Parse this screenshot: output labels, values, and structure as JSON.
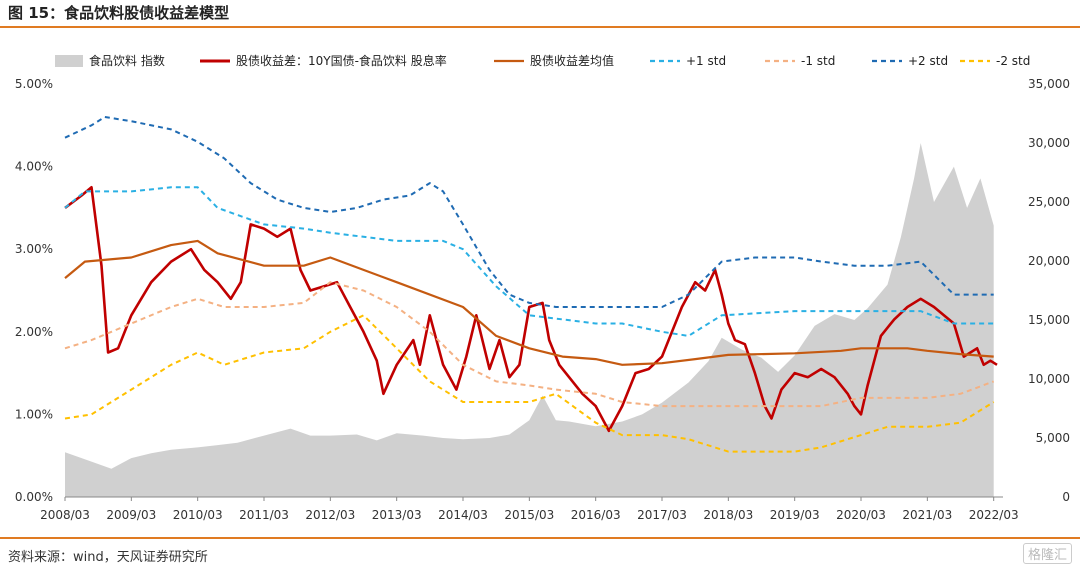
{
  "figure": {
    "title": "图 15：食品饮料股债收益差模型",
    "source": "资料来源：wind，天风证券研究所",
    "watermark": "格隆汇"
  },
  "colors": {
    "index_area": "#d0d0d0",
    "spread": "#c00000",
    "mean": "#c55a11",
    "plus1": "#2ab0e4",
    "minus1": "#f4b183",
    "plus2": "#1f6bb3",
    "minus2": "#ffc000",
    "rule": "#e07b22"
  },
  "chart_data": {
    "type": "line",
    "title": "",
    "x_tick_labels": [
      "2008/03",
      "2009/03",
      "2010/03",
      "2011/03",
      "2012/03",
      "2013/03",
      "2014/03",
      "2015/03",
      "2016/03",
      "2017/03",
      "2018/03",
      "2019/03",
      "2020/03",
      "2021/03",
      "2022/03"
    ],
    "y_left": {
      "min": 0,
      "max": 5,
      "unit": "%",
      "tick_labels": [
        "0.00%",
        "1.00%",
        "2.00%",
        "3.00%",
        "4.00%",
        "5.00%"
      ]
    },
    "y_right": {
      "min": 0,
      "max": 35000,
      "tick_labels": [
        "0",
        "5,000",
        "10,000",
        "15,000",
        "20,000",
        "25,000",
        "30,000",
        "35,000"
      ]
    },
    "legend": [
      "食品饮料 指数",
      "股债收益差：10Y国债-食品饮料 股息率",
      "股债收益差均值",
      "+1 std",
      "-1 std",
      "+2 std",
      "-2 std"
    ],
    "legend_position": "top",
    "series": [
      {
        "name": "食品饮料 指数",
        "axis": "right",
        "kind": "area",
        "x": [
          2008.2,
          2008.6,
          2008.9,
          2009.2,
          2009.5,
          2009.8,
          2010.2,
          2010.5,
          2010.8,
          2011.2,
          2011.6,
          2011.9,
          2012.2,
          2012.6,
          2012.9,
          2013.2,
          2013.6,
          2013.9,
          2014.2,
          2014.6,
          2014.9,
          2015.2,
          2015.4,
          2015.6,
          2015.8,
          2016.2,
          2016.6,
          2016.9,
          2017.2,
          2017.6,
          2017.9,
          2018.1,
          2018.4,
          2018.7,
          2018.95,
          2019.2,
          2019.5,
          2019.8,
          2020.1,
          2020.3,
          2020.6,
          2020.8,
          2021.0,
          2021.1,
          2021.3,
          2021.6,
          2021.8,
          2022.0,
          2022.2
        ],
        "values": [
          3800,
          3000,
          2400,
          3300,
          3700,
          4000,
          4200,
          4400,
          4600,
          5200,
          5800,
          5200,
          5200,
          5300,
          4800,
          5400,
          5200,
          5000,
          4900,
          5000,
          5300,
          6500,
          8600,
          6500,
          6400,
          6000,
          6400,
          7000,
          8000,
          9700,
          11500,
          13500,
          12500,
          11800,
          10600,
          12000,
          14500,
          15500,
          15000,
          16000,
          18000,
          22000,
          27000,
          30000,
          25000,
          28000,
          24500,
          27000,
          23000
        ]
      },
      {
        "name": "股债收益差：10Y国债-食品饮料 股息率",
        "axis": "left",
        "kind": "line",
        "x": [
          2008.2,
          2008.45,
          2008.6,
          2008.75,
          2008.85,
          2009.0,
          2009.2,
          2009.5,
          2009.8,
          2010.1,
          2010.3,
          2010.5,
          2010.7,
          2010.85,
          2011.0,
          2011.2,
          2011.4,
          2011.6,
          2011.75,
          2011.9,
          2012.1,
          2012.3,
          2012.5,
          2012.7,
          2012.9,
          2013.0,
          2013.2,
          2013.45,
          2013.55,
          2013.7,
          2013.9,
          2014.1,
          2014.25,
          2014.4,
          2014.6,
          2014.75,
          2014.9,
          2015.05,
          2015.2,
          2015.4,
          2015.5,
          2015.65,
          2015.8,
          2016.0,
          2016.2,
          2016.4,
          2016.6,
          2016.8,
          2017.0,
          2017.2,
          2017.5,
          2017.7,
          2017.85,
          2018.0,
          2018.1,
          2018.2,
          2018.3,
          2018.45,
          2018.6,
          2018.75,
          2018.85,
          2019.0,
          2019.2,
          2019.4,
          2019.6,
          2019.8,
          2020.0,
          2020.1,
          2020.2,
          2020.3,
          2020.5,
          2020.7,
          2020.9,
          2021.1,
          2021.3,
          2021.45,
          2021.6,
          2021.75,
          2021.95,
          2022.05,
          2022.15,
          2022.25
        ],
        "values": [
          3.5,
          3.65,
          3.75,
          2.8,
          1.75,
          1.8,
          2.2,
          2.6,
          2.85,
          3.0,
          2.75,
          2.6,
          2.4,
          2.6,
          3.3,
          3.25,
          3.15,
          3.25,
          2.75,
          2.5,
          2.55,
          2.6,
          2.3,
          2.0,
          1.65,
          1.25,
          1.6,
          1.9,
          1.6,
          2.2,
          1.6,
          1.3,
          1.7,
          2.2,
          1.55,
          1.9,
          1.45,
          1.6,
          2.3,
          2.35,
          1.9,
          1.6,
          1.45,
          1.25,
          1.1,
          0.8,
          1.1,
          1.5,
          1.55,
          1.7,
          2.3,
          2.6,
          2.5,
          2.75,
          2.45,
          2.1,
          1.9,
          1.85,
          1.5,
          1.1,
          0.95,
          1.3,
          1.5,
          1.45,
          1.55,
          1.45,
          1.25,
          1.1,
          1.0,
          1.35,
          1.95,
          2.15,
          2.3,
          2.4,
          2.3,
          2.2,
          2.1,
          1.7,
          1.8,
          1.6,
          1.65,
          1.6
        ]
      },
      {
        "name": "股债收益差均值",
        "axis": "left",
        "kind": "line",
        "x": [
          2008.2,
          2008.5,
          2009.2,
          2009.8,
          2010.2,
          2010.5,
          2011.2,
          2011.8,
          2012.2,
          2012.7,
          2013.2,
          2014.2,
          2014.7,
          2015.2,
          2015.7,
          2016.2,
          2016.6,
          2017.2,
          2017.7,
          2018.2,
          2019.2,
          2019.9,
          2020.2,
          2020.5,
          2020.9,
          2021.2,
          2021.7,
          2022.2
        ],
        "values": [
          2.65,
          2.85,
          2.9,
          3.05,
          3.1,
          2.95,
          2.8,
          2.8,
          2.9,
          2.75,
          2.6,
          2.3,
          1.95,
          1.8,
          1.7,
          1.67,
          1.6,
          1.62,
          1.67,
          1.72,
          1.74,
          1.77,
          1.8,
          1.8,
          1.8,
          1.77,
          1.73,
          1.7
        ]
      },
      {
        "name": "+1 std",
        "axis": "left",
        "kind": "dashed",
        "x": [
          2008.2,
          2008.5,
          2009.2,
          2009.8,
          2010.2,
          2010.5,
          2011.2,
          2011.8,
          2012.2,
          2012.7,
          2013.2,
          2013.9,
          2014.2,
          2014.7,
          2015.2,
          2015.7,
          2016.2,
          2016.6,
          2017.2,
          2017.6,
          2018.1,
          2019.2,
          2019.9,
          2020.2,
          2020.6,
          2020.9,
          2021.1,
          2021.6,
          2022.2
        ],
        "values": [
          3.5,
          3.7,
          3.7,
          3.75,
          3.75,
          3.5,
          3.3,
          3.25,
          3.2,
          3.15,
          3.1,
          3.1,
          3.0,
          2.55,
          2.2,
          2.15,
          2.1,
          2.1,
          2.0,
          1.95,
          2.2,
          2.25,
          2.25,
          2.25,
          2.25,
          2.25,
          2.25,
          2.1,
          2.1
        ]
      },
      {
        "name": "-1 std",
        "axis": "left",
        "kind": "dashed",
        "x": [
          2008.2,
          2008.6,
          2009.2,
          2009.8,
          2010.2,
          2010.6,
          2011.2,
          2011.8,
          2012.2,
          2012.7,
          2013.2,
          2013.7,
          2014.2,
          2014.7,
          2015.2,
          2015.6,
          2016.2,
          2016.6,
          2017.2,
          2017.6,
          2018.2,
          2019.2,
          2019.6,
          2020.2,
          2020.6,
          2021.2,
          2021.7,
          2022.2
        ],
        "values": [
          1.8,
          1.9,
          2.1,
          2.3,
          2.4,
          2.3,
          2.3,
          2.35,
          2.6,
          2.5,
          2.3,
          2.0,
          1.6,
          1.4,
          1.35,
          1.3,
          1.25,
          1.15,
          1.1,
          1.1,
          1.1,
          1.1,
          1.1,
          1.2,
          1.2,
          1.2,
          1.25,
          1.4
        ]
      },
      {
        "name": "+2 std",
        "axis": "left",
        "kind": "dashed",
        "x": [
          2008.2,
          2008.6,
          2008.8,
          2009.2,
          2009.8,
          2010.2,
          2010.6,
          2011.0,
          2011.4,
          2011.8,
          2012.2,
          2012.6,
          2013.0,
          2013.4,
          2013.7,
          2013.9,
          2014.2,
          2014.6,
          2014.9,
          2015.2,
          2015.6,
          2016.2,
          2016.6,
          2017.2,
          2017.6,
          2018.1,
          2018.6,
          2019.2,
          2019.6,
          2020.1,
          2020.6,
          2021.1,
          2021.6,
          2022.2
        ],
        "values": [
          4.35,
          4.5,
          4.6,
          4.55,
          4.45,
          4.3,
          4.1,
          3.8,
          3.6,
          3.5,
          3.45,
          3.5,
          3.6,
          3.65,
          3.8,
          3.7,
          3.3,
          2.75,
          2.45,
          2.35,
          2.3,
          2.3,
          2.3,
          2.3,
          2.45,
          2.85,
          2.9,
          2.9,
          2.85,
          2.8,
          2.8,
          2.85,
          2.45,
          2.45
        ]
      },
      {
        "name": "-2 std",
        "axis": "left",
        "kind": "dashed",
        "x": [
          2008.2,
          2008.6,
          2009.2,
          2009.8,
          2010.2,
          2010.6,
          2011.2,
          2011.8,
          2012.2,
          2012.7,
          2013.2,
          2013.7,
          2014.2,
          2014.7,
          2015.2,
          2015.6,
          2016.2,
          2016.6,
          2017.2,
          2017.6,
          2018.2,
          2019.2,
          2019.6,
          2020.2,
          2020.6,
          2021.2,
          2021.7,
          2022.2
        ],
        "values": [
          0.95,
          1.0,
          1.3,
          1.6,
          1.75,
          1.6,
          1.75,
          1.8,
          2.0,
          2.2,
          1.8,
          1.4,
          1.15,
          1.15,
          1.15,
          1.25,
          0.9,
          0.75,
          0.75,
          0.7,
          0.55,
          0.55,
          0.6,
          0.75,
          0.85,
          0.85,
          0.9,
          1.15
        ]
      }
    ]
  }
}
